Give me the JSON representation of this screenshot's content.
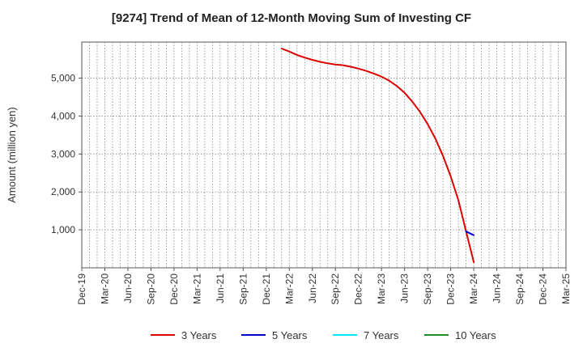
{
  "chart_data": {
    "type": "line",
    "title": "[9274]  Trend of Mean of 12-Month Moving Sum of Investing CF",
    "xlabel": "",
    "ylabel": "Amount (million yen)",
    "x_ticks": [
      "Dec-19",
      "Mar-20",
      "Jun-20",
      "Sep-20",
      "Dec-20",
      "Mar-21",
      "Jun-21",
      "Sep-21",
      "Dec-21",
      "Mar-22",
      "Jun-22",
      "Sep-22",
      "Dec-22",
      "Mar-23",
      "Jun-23",
      "Sep-23",
      "Dec-23",
      "Mar-24",
      "Jun-24",
      "Sep-24",
      "Dec-24",
      "Mar-25"
    ],
    "y_ticks": [
      1000,
      2000,
      3000,
      4000,
      5000
    ],
    "y_tick_labels": [
      "1,000",
      "2,000",
      "3,000",
      "4,000",
      "5,000"
    ],
    "ylim": [
      0,
      5950
    ],
    "grid": true,
    "legend_position": "bottom",
    "series": [
      {
        "name": "3 Years",
        "color": "#dd0000",
        "x": [
          "Feb-22",
          "Mar-22",
          "Apr-22",
          "May-22",
          "Jun-22",
          "Jul-22",
          "Aug-22",
          "Sep-22",
          "Oct-22",
          "Nov-22",
          "Dec-22",
          "Jan-23",
          "Feb-23",
          "Mar-23",
          "Apr-23",
          "May-23",
          "Jun-23",
          "Jul-23",
          "Aug-23",
          "Sep-23",
          "Oct-23",
          "Nov-23",
          "Dec-23",
          "Jan-24",
          "Feb-24",
          "Mar-24"
        ],
        "values": [
          5780,
          5700,
          5610,
          5540,
          5480,
          5430,
          5390,
          5360,
          5340,
          5300,
          5250,
          5190,
          5120,
          5040,
          4930,
          4790,
          4610,
          4380,
          4110,
          3790,
          3410,
          2950,
          2410,
          1780,
          960,
          150
        ]
      },
      {
        "name": "5 Years",
        "color": "#0000cc",
        "x": [
          "Feb-24",
          "Mar-24"
        ],
        "values": [
          960,
          860
        ]
      },
      {
        "name": "7 Years",
        "color": "#00e5ee",
        "x": [],
        "values": []
      },
      {
        "name": "10 Years",
        "color": "#228b22",
        "x": [],
        "values": []
      }
    ]
  }
}
